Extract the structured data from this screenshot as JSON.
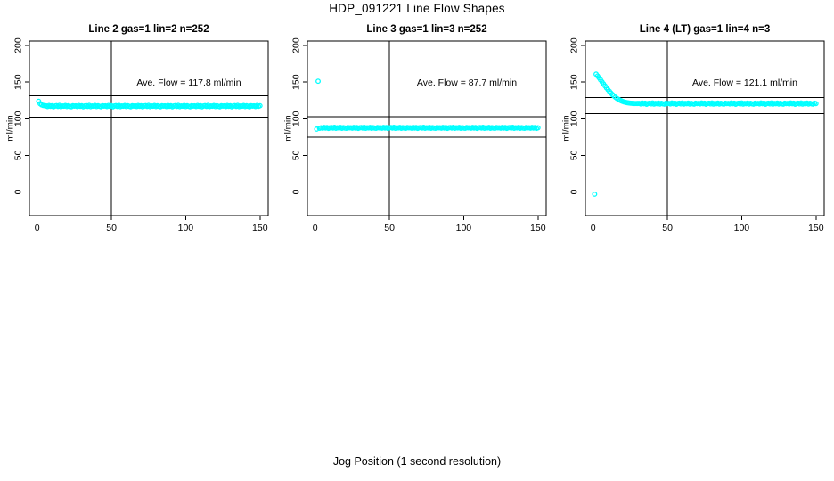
{
  "figure": {
    "title": "HDP_091221  Line Flow Shapes",
    "xlabel": "Jog Position (1 second resolution)",
    "background": "#FFFFFF",
    "point_color": "#00FFFF",
    "line_color": "#000000"
  },
  "chart_data": [
    {
      "type": "scatter",
      "title": "Line 2 gas=1 lin=2 n=252",
      "annotation": "Ave. Flow =  117.8  ml/min",
      "ave_flow_ml_min": 117.8,
      "n": 252,
      "ylabel": "ml/min",
      "yticks": [
        0,
        50,
        100,
        150,
        200
      ],
      "xticks": [
        0,
        50,
        100,
        150
      ],
      "xlim": [
        -6,
        156
      ],
      "ylim": [
        -33,
        207
      ],
      "grid": false,
      "vline_x": 50,
      "hlines": [
        131.5,
        102.0
      ],
      "marker": "open-circle",
      "x_start": 1,
      "x_step": 1,
      "y": [
        123.9,
        120.6,
        119.0,
        118.2,
        117.9,
        117.6,
        116.8,
        118.1,
        117.1,
        117.8,
        116.4,
        117.4,
        117.9,
        116.9,
        118.2,
        116.6,
        117.5,
        117.2,
        118.0,
        116.7,
        117.7,
        117.0,
        116.5,
        117.8,
        117.3,
        117.6,
        116.8,
        118.1,
        117.1,
        117.8,
        116.4,
        117.4,
        117.9,
        116.9,
        118.2,
        116.6,
        117.5,
        117.2,
        118.0,
        116.7,
        117.7,
        117.0,
        116.5,
        117.8,
        117.3,
        117.6,
        116.8,
        118.1,
        117.1,
        117.8,
        116.4,
        117.4,
        117.9,
        116.9,
        118.2,
        116.6,
        117.5,
        117.2,
        118.0,
        116.7,
        117.7,
        117.0,
        116.5,
        117.8,
        117.3,
        117.6,
        116.8,
        118.1,
        117.1,
        117.8,
        116.4,
        117.4,
        117.9,
        116.9,
        118.2,
        116.6,
        117.5,
        117.2,
        118.0,
        116.7,
        117.7,
        117.0,
        116.5,
        117.8,
        117.3,
        117.6,
        116.8,
        118.1,
        117.1,
        117.8,
        116.4,
        117.4,
        117.9,
        116.9,
        118.2,
        116.6,
        117.5,
        117.2,
        118.0,
        116.7,
        117.7,
        117.0,
        116.5,
        117.8,
        117.3,
        117.6,
        116.8,
        118.1,
        117.1,
        117.8,
        116.4,
        117.4,
        117.9,
        116.9,
        118.2,
        116.6,
        117.5,
        117.2,
        118.0,
        116.7,
        117.7,
        117.0,
        116.5,
        117.8,
        117.3,
        117.6,
        116.8,
        118.1,
        117.1,
        117.8,
        116.4,
        117.4,
        117.9,
        116.9,
        118.2,
        116.6,
        117.5,
        117.2,
        118.0,
        116.7,
        117.7,
        117.0,
        116.5,
        117.8,
        117.3,
        117.6,
        116.8,
        118.1,
        117.1,
        117.8
      ]
    },
    {
      "type": "scatter",
      "title": "Line 3 gas=1 lin=3 n=252",
      "annotation": "Ave. Flow =  87.7  ml/min",
      "ave_flow_ml_min": 87.7,
      "n": 252,
      "ylabel": "ml/min",
      "yticks": [
        0,
        50,
        100,
        150,
        200
      ],
      "xticks": [
        0,
        50,
        100,
        150
      ],
      "xlim": [
        -6,
        156
      ],
      "ylim": [
        -33,
        207
      ],
      "grid": false,
      "vline_x": 50,
      "hlines": [
        102.5,
        74.8
      ],
      "marker": "open-circle",
      "x_start": 1,
      "x_step": 1,
      "y": [
        85.8,
        151.2,
        86.9,
        87.7,
        87.1,
        88.1,
        87.3,
        87.9,
        86.8,
        87.6,
        88.0,
        87.2,
        88.2,
        86.9,
        87.7,
        87.4,
        88.1,
        87.0,
        87.8,
        87.3,
        86.9,
        87.9,
        87.5,
        87.7,
        87.1,
        88.1,
        87.3,
        87.9,
        86.8,
        87.6,
        88.0,
        87.2,
        88.2,
        86.9,
        87.7,
        87.4,
        88.1,
        87.0,
        87.8,
        87.3,
        86.9,
        87.9,
        87.5,
        87.7,
        87.1,
        88.1,
        87.3,
        87.9,
        86.8,
        87.6,
        88.0,
        87.2,
        88.2,
        86.9,
        87.7,
        87.4,
        88.1,
        87.0,
        87.8,
        87.3,
        86.9,
        87.9,
        87.5,
        87.7,
        87.1,
        88.1,
        87.3,
        87.9,
        86.8,
        87.6,
        88.0,
        87.2,
        88.2,
        86.9,
        87.7,
        87.4,
        88.1,
        87.0,
        87.8,
        87.3,
        86.9,
        87.9,
        87.5,
        87.7,
        87.1,
        88.1,
        87.3,
        87.9,
        86.8,
        87.6,
        88.0,
        87.2,
        88.2,
        86.9,
        87.7,
        87.4,
        88.1,
        87.0,
        87.8,
        87.3,
        86.9,
        87.9,
        87.5,
        87.7,
        87.1,
        88.1,
        87.3,
        87.9,
        86.8,
        87.6,
        88.0,
        87.2,
        88.2,
        86.9,
        87.7,
        87.4,
        88.1,
        87.0,
        87.8,
        87.3,
        86.9,
        87.9,
        87.5,
        87.7,
        87.1,
        88.1,
        87.3,
        87.9,
        86.8,
        87.6,
        88.0,
        87.2,
        88.2,
        86.9,
        87.7,
        87.4,
        88.1,
        87.0,
        87.8,
        87.3,
        86.9,
        87.9,
        87.5,
        87.7,
        87.1,
        88.1,
        87.3,
        87.9,
        86.8,
        87.6
      ]
    },
    {
      "type": "scatter",
      "title": "Line 4 (LT) gas=1 lin=4 n=3",
      "annotation": "Ave. Flow =  121.1  ml/min",
      "ave_flow_ml_min": 121.1,
      "n": 3,
      "ylabel": "ml/min",
      "yticks": [
        0,
        50,
        100,
        150,
        200
      ],
      "xticks": [
        0,
        50,
        100,
        150
      ],
      "xlim": [
        -6,
        156
      ],
      "ylim": [
        -33,
        207
      ],
      "grid": false,
      "vline_x": 50,
      "hlines": [
        129.0,
        106.9
      ],
      "marker": "open-circle",
      "x_start": 1,
      "x_step": 1,
      "y": [
        -3.0,
        160.9,
        158.4,
        156.0,
        153.2,
        150.3,
        147.5,
        144.8,
        142.2,
        139.7,
        137.3,
        135.0,
        132.9,
        131.0,
        129.3,
        127.8,
        126.5,
        125.4,
        124.4,
        123.6,
        122.9,
        122.4,
        121.9,
        121.6,
        121.3,
        121.1,
        120.9,
        120.8,
        120.8,
        120.9,
        121.0,
        120.2,
        121.5,
        120.5,
        121.2,
        119.8,
        120.8,
        121.3,
        120.3,
        121.6,
        120.0,
        120.9,
        120.6,
        121.4,
        120.1,
        121.1,
        120.4,
        119.9,
        121.2,
        120.7,
        121.0,
        120.2,
        121.5,
        120.5,
        121.2,
        119.8,
        120.8,
        121.3,
        120.3,
        121.6,
        120.0,
        120.9,
        120.6,
        121.4,
        120.1,
        121.1,
        120.4,
        119.9,
        121.2,
        120.7,
        121.0,
        120.2,
        121.5,
        120.5,
        121.2,
        119.8,
        120.8,
        121.3,
        120.3,
        121.6,
        120.0,
        120.9,
        120.6,
        121.4,
        120.1,
        121.1,
        120.4,
        119.9,
        121.2,
        120.7,
        121.0,
        120.2,
        121.5,
        120.5,
        121.2,
        119.8,
        120.8,
        121.3,
        120.3,
        121.6,
        120.0,
        120.9,
        120.6,
        121.4,
        120.1,
        121.1,
        120.4,
        119.9,
        121.2,
        120.7,
        121.0,
        120.2,
        121.5,
        120.5,
        121.2,
        119.8,
        120.8,
        121.3,
        120.3,
        121.6,
        120.0,
        120.9,
        120.6,
        121.4,
        120.1,
        121.1,
        120.4,
        119.9,
        121.2,
        120.7,
        121.0,
        120.2,
        121.5,
        120.5,
        121.2,
        119.8,
        120.8,
        121.3,
        120.3,
        121.6,
        120.0,
        120.9,
        120.6,
        121.4,
        120.1,
        121.1,
        120.4,
        119.9,
        121.2,
        120.7
      ]
    }
  ]
}
